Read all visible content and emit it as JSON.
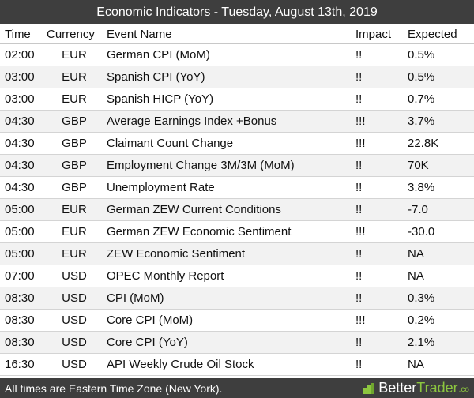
{
  "title": "Economic Indicators - Tuesday, August 13th, 2019",
  "columns": {
    "time": "Time",
    "currency": "Currency",
    "event": "Event Name",
    "impact": "Impact",
    "expected": "Expected"
  },
  "rows": [
    {
      "time": "02:00",
      "currency": "EUR",
      "event": "German CPI (MoM)",
      "impact": "!!",
      "expected": "0.5%"
    },
    {
      "time": "03:00",
      "currency": "EUR",
      "event": "Spanish CPI (YoY)",
      "impact": "!!",
      "expected": "0.5%"
    },
    {
      "time": "03:00",
      "currency": "EUR",
      "event": "Spanish HICP (YoY)",
      "impact": "!!",
      "expected": "0.7%"
    },
    {
      "time": "04:30",
      "currency": "GBP",
      "event": "Average Earnings Index +Bonus",
      "impact": "!!!",
      "expected": "3.7%"
    },
    {
      "time": "04:30",
      "currency": "GBP",
      "event": "Claimant Count Change",
      "impact": "!!!",
      "expected": "22.8K"
    },
    {
      "time": "04:30",
      "currency": "GBP",
      "event": "Employment Change 3M/3M (MoM)",
      "impact": "!!",
      "expected": "70K"
    },
    {
      "time": "04:30",
      "currency": "GBP",
      "event": "Unemployment Rate",
      "impact": "!!",
      "expected": "3.8%"
    },
    {
      "time": "05:00",
      "currency": "EUR",
      "event": "German ZEW Current Conditions",
      "impact": "!!",
      "expected": "-7.0"
    },
    {
      "time": "05:00",
      "currency": "EUR",
      "event": "German ZEW Economic Sentiment",
      "impact": "!!!",
      "expected": "-30.0"
    },
    {
      "time": "05:00",
      "currency": "EUR",
      "event": "ZEW Economic Sentiment",
      "impact": "!!",
      "expected": "NA"
    },
    {
      "time": "07:00",
      "currency": "USD",
      "event": "OPEC Monthly Report",
      "impact": "!!",
      "expected": "NA"
    },
    {
      "time": "08:30",
      "currency": "USD",
      "event": "CPI (MoM)",
      "impact": "!!",
      "expected": "0.3%"
    },
    {
      "time": "08:30",
      "currency": "USD",
      "event": "Core CPI (MoM)",
      "impact": "!!!",
      "expected": "0.2%"
    },
    {
      "time": "08:30",
      "currency": "USD",
      "event": "Core CPI (YoY)",
      "impact": "!!",
      "expected": "2.1%"
    },
    {
      "time": "16:30",
      "currency": "USD",
      "event": "API Weekly Crude Oil Stock",
      "impact": "!!",
      "expected": "NA"
    }
  ],
  "footer": {
    "note": "All times are Eastern Time Zone (New York).",
    "brand_better": "Better",
    "brand_trader": "Trader",
    "brand_suffix": ".co",
    "brand_icon": "brand-logo-icon",
    "brand_color": "#8cc63f"
  },
  "colors": {
    "bar_background": "#3e3e3e",
    "row_alt": "#f2f2f2"
  }
}
